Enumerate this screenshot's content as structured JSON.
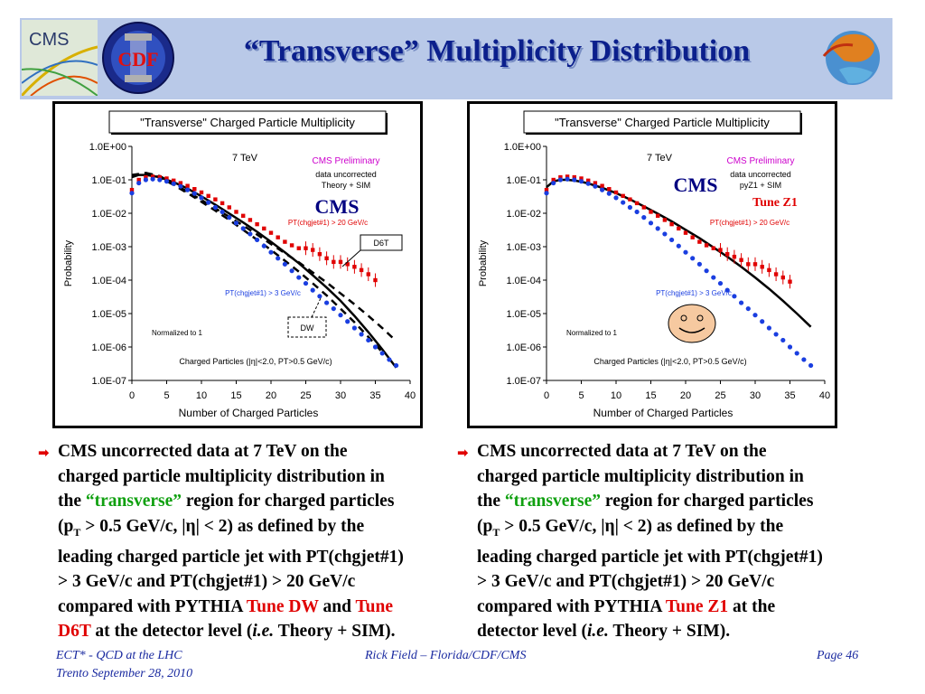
{
  "header": {
    "title": "“Transverse” Multiplicity Distribution",
    "cms_logo_text": "CMS",
    "cdf_logo_text": "CDF"
  },
  "colors": {
    "title": "#0b1f8c",
    "header_bg": "#b9c9e8",
    "data_red": "#e00000",
    "d6t_blue": "#1a3ee0",
    "cms_label": "#cc00cc",
    "footer": "#1a2aa0"
  },
  "chart_data": [
    {
      "type": "scatter",
      "title": "\"Transverse\" Charged Particle Multiplicity",
      "xlabel": "Number of Charged Particles",
      "ylabel": "Probability",
      "xlim": [
        0,
        40
      ],
      "ylim": [
        1e-07,
        1
      ],
      "yscale": "log",
      "xticks": [
        "0",
        "5",
        "10",
        "15",
        "20",
        "25",
        "30",
        "35",
        "40"
      ],
      "yticks": [
        "1.0E+00",
        "1.0E-01",
        "1.0E-02",
        "1.0E-03",
        "1.0E-04",
        "1.0E-05",
        "1.0E-06",
        "1.0E-07"
      ],
      "annotations": {
        "energy": "7 TeV",
        "preliminary": "CMS Preliminary",
        "note1": "data uncorrected",
        "note2": "Theory + SIM",
        "cms": "CMS",
        "red_label": "PT(chgjet#1) > 20 GeV/c",
        "blue_label": "PT(chgjet#1) > 3 GeV/c",
        "normalized": "Normalized to 1",
        "cut_label": "Charged Particles (|η|<2.0, PT>0.5 GeV/c)",
        "box1": "D6T",
        "box2": "DW"
      },
      "series": [
        {
          "kind": "data-red",
          "x": [
            0,
            1,
            2,
            3,
            4,
            5,
            6,
            7,
            8,
            9,
            10,
            11,
            12,
            13,
            14,
            15,
            16,
            17,
            18,
            19,
            20,
            21,
            22,
            23,
            24,
            25,
            26,
            27,
            28,
            29,
            30,
            31,
            32,
            33,
            34,
            35
          ],
          "y": [
            0.05,
            0.1,
            0.12,
            0.125,
            0.12,
            0.11,
            0.095,
            0.08,
            0.066,
            0.053,
            0.042,
            0.033,
            0.026,
            0.02,
            0.015,
            0.011,
            0.0084,
            0.0063,
            0.0047,
            0.0035,
            0.0026,
            0.0019,
            0.0014,
            0.0011,
            0.0009,
            0.0009,
            0.0008,
            0.0006,
            0.00045,
            0.00035,
            0.00035,
            0.0003,
            0.00025,
            0.0002,
            0.00015,
            0.0001
          ]
        },
        {
          "kind": "data-blue",
          "x": [
            0,
            1,
            2,
            3,
            4,
            5,
            6,
            7,
            8,
            9,
            10,
            11,
            12,
            13,
            14,
            15,
            16,
            17,
            18,
            19,
            20,
            21,
            22,
            23,
            24,
            25,
            26,
            27,
            28,
            29,
            30,
            31,
            32,
            33,
            34,
            35,
            36,
            37,
            38
          ],
          "y": [
            0.04,
            0.08,
            0.1,
            0.105,
            0.1,
            0.09,
            0.077,
            0.064,
            0.05,
            0.039,
            0.029,
            0.021,
            0.015,
            0.011,
            0.0075,
            0.0051,
            0.0035,
            0.0024,
            0.0016,
            0.00105,
            0.00068,
            0.00045,
            0.0003,
            0.00019,
            0.00012,
            8e-05,
            5e-05,
            3.3e-05,
            2.1e-05,
            1.4e-05,
            9e-06,
            5.8e-06,
            3.7e-06,
            2.4e-06,
            1.6e-06,
            1e-06,
            6.5e-07,
            4.2e-07,
            2.8e-07
          ]
        },
        {
          "kind": "theory-solid",
          "x": [
            0,
            1,
            2,
            3,
            4,
            5,
            6,
            8,
            10,
            12,
            14,
            16,
            18,
            20,
            22,
            24,
            26,
            28,
            30,
            32,
            34,
            36,
            38
          ],
          "y": [
            0.12,
            0.14,
            0.14,
            0.13,
            0.12,
            0.1,
            0.085,
            0.055,
            0.032,
            0.018,
            0.0098,
            0.0053,
            0.0028,
            0.0014,
            0.00068,
            0.00032,
            0.00014,
            6e-05,
            2.4e-05,
            8.5e-06,
            2.8e-06,
            8.5e-07,
            2.4e-07
          ]
        },
        {
          "kind": "theory-dashed-1",
          "x": [
            0,
            2,
            4,
            6,
            8,
            10,
            12,
            14,
            16,
            18,
            20,
            22,
            24,
            26,
            28,
            30,
            32,
            34,
            36
          ],
          "y": [
            0.14,
            0.16,
            0.12,
            0.07,
            0.04,
            0.022,
            0.012,
            0.0063,
            0.0032,
            0.0016,
            0.0008,
            0.00038,
            0.00018,
            8e-05,
            3.5e-05,
            1.4e-05,
            5.5e-06,
            2e-06,
            7e-07
          ]
        },
        {
          "kind": "theory-dashed-2",
          "x": [
            2,
            4,
            6,
            8,
            10,
            12,
            14,
            16,
            18,
            20,
            22,
            24,
            26,
            28,
            30,
            32,
            34,
            36,
            38
          ],
          "y": [
            0.16,
            0.13,
            0.075,
            0.044,
            0.025,
            0.014,
            0.0078,
            0.0043,
            0.0023,
            0.0012,
            0.00064,
            0.00034,
            0.00017,
            8.5e-05,
            4e-05,
            1.9e-05,
            8.5e-06,
            3.7e-06,
            1.5e-06
          ]
        }
      ]
    },
    {
      "type": "scatter",
      "title": "\"Transverse\" Charged Particle Multiplicity",
      "xlabel": "Number of Charged Particles",
      "ylabel": "Probability",
      "xlim": [
        0,
        40
      ],
      "ylim": [
        1e-07,
        1
      ],
      "yscale": "log",
      "xticks": [
        "0",
        "5",
        "10",
        "15",
        "20",
        "25",
        "30",
        "35",
        "40"
      ],
      "yticks": [
        "1.0E+00",
        "1.0E-01",
        "1.0E-02",
        "1.0E-03",
        "1.0E-04",
        "1.0E-05",
        "1.0E-06",
        "1.0E-07"
      ],
      "annotations": {
        "energy": "7 TeV",
        "preliminary": "CMS Preliminary",
        "note1": "data uncorrected",
        "note2": "pyZ1 + SIM",
        "cms": "CMS",
        "tune": "Tune Z1",
        "red_label": "PT(chgjet#1) > 20 GeV/c",
        "blue_label": "PT(chgjet#1) > 3 GeV/c",
        "normalized": "Normalized to 1",
        "cut_label": "Charged Particles (|η|<2.0, PT>0.5 GeV/c)"
      },
      "series": [
        {
          "kind": "data-red",
          "x": [
            0,
            1,
            2,
            3,
            4,
            5,
            6,
            7,
            8,
            9,
            10,
            11,
            12,
            13,
            14,
            15,
            16,
            17,
            18,
            19,
            20,
            21,
            22,
            23,
            24,
            25,
            26,
            27,
            28,
            29,
            30,
            31,
            32,
            33,
            34,
            35
          ],
          "y": [
            0.05,
            0.1,
            0.12,
            0.125,
            0.12,
            0.11,
            0.095,
            0.08,
            0.066,
            0.053,
            0.042,
            0.033,
            0.026,
            0.02,
            0.015,
            0.011,
            0.0084,
            0.0063,
            0.0047,
            0.0035,
            0.0026,
            0.0019,
            0.0014,
            0.0011,
            0.0009,
            0.0008,
            0.0006,
            0.0005,
            0.0004,
            0.0003,
            0.0003,
            0.00025,
            0.0002,
            0.00015,
            0.00012,
            9e-05
          ]
        },
        {
          "kind": "data-blue",
          "x": [
            0,
            1,
            2,
            3,
            4,
            5,
            6,
            7,
            8,
            9,
            10,
            11,
            12,
            13,
            14,
            15,
            16,
            17,
            18,
            19,
            20,
            21,
            22,
            23,
            24,
            25,
            26,
            27,
            28,
            29,
            30,
            31,
            32,
            33,
            34,
            35,
            36,
            37,
            38
          ],
          "y": [
            0.04,
            0.08,
            0.1,
            0.105,
            0.1,
            0.09,
            0.077,
            0.064,
            0.05,
            0.039,
            0.029,
            0.021,
            0.015,
            0.011,
            0.0075,
            0.0051,
            0.0035,
            0.0024,
            0.0016,
            0.00105,
            0.00068,
            0.00045,
            0.0003,
            0.00019,
            0.00012,
            8e-05,
            5e-05,
            3.3e-05,
            2.1e-05,
            1.4e-05,
            9e-06,
            5.8e-06,
            3.7e-06,
            2.4e-06,
            1.6e-06,
            1e-06,
            6.5e-07,
            4.2e-07,
            2.8e-07
          ]
        },
        {
          "kind": "theory-solid",
          "x": [
            0,
            1,
            2,
            3,
            4,
            5,
            6,
            8,
            10,
            12,
            14,
            16,
            18,
            20,
            22,
            24,
            26,
            28,
            30,
            32,
            34,
            36,
            38
          ],
          "y": [
            0.06,
            0.09,
            0.1,
            0.1,
            0.095,
            0.088,
            0.078,
            0.058,
            0.04,
            0.026,
            0.016,
            0.0097,
            0.0057,
            0.0032,
            0.0018,
            0.00095,
            0.0005,
            0.00025,
            0.00012,
            5.5e-05,
            2.4e-05,
            1e-05,
            4e-06
          ]
        }
      ]
    }
  ],
  "bullets": [
    {
      "l1": "CMS uncorrected data at 7 TeV on the",
      "l2": "charged particle multiplicity distribution in",
      "l3a": "the ",
      "l3b": "“transverse”",
      "l3c": " region for charged particles",
      "l4a": "(p",
      "l4sub": "T",
      "l4b": " > 0.5 GeV/c, |η| < 2) as defined by the",
      "l5": "leading charged particle jet with PT(chgjet#1)",
      "l6": "> 3 GeV/c and PT(chgjet#1) > 20 GeV/c",
      "l7a": "compared with PYTHIA ",
      "l7b": "Tune DW",
      "l7c": " and ",
      "l7d": "Tune",
      "l8a": "D6T",
      "l8b": " at the detector level (",
      "l8c": "i.e.",
      "l8d": " Theory + SIM)."
    },
    {
      "l1": "CMS uncorrected data at 7 TeV on the",
      "l2": "charged particle multiplicity distribution in",
      "l3a": "the ",
      "l3b": "“transverse”",
      "l3c": " region for charged particles",
      "l4a": "(p",
      "l4sub": "T",
      "l4b": " > 0.5 GeV/c, |η| < 2) as defined by the",
      "l5": "leading charged particle jet with PT(chgjet#1)",
      "l6": "> 3 GeV/c and PT(chgjet#1) > 20 GeV/c",
      "l7a": "compared with PYTHIA ",
      "l7b": "Tune Z1",
      "l7c": " at the",
      "l8a": "detector level (",
      "l8b": "i.e.",
      "l8c": " Theory + SIM)."
    }
  ],
  "footer": {
    "left1": "ECT* - QCD at the LHC",
    "left2": "Trento  September 28, 2010",
    "center": "Rick Field – Florida/CDF/CMS",
    "right": "Page 46"
  }
}
